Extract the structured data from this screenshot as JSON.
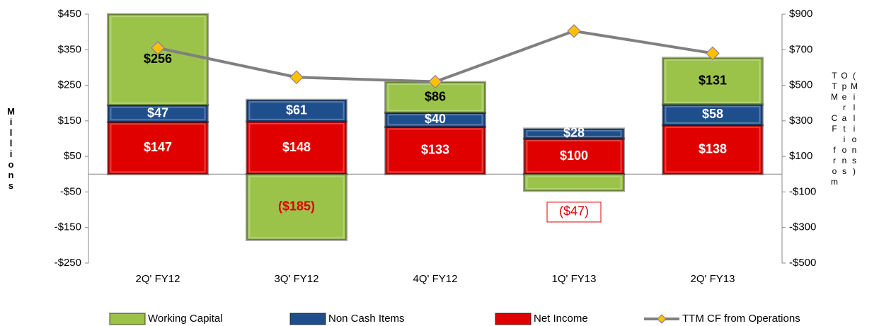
{
  "chart_data": {
    "type": "bar",
    "categories": [
      "2Q' FY12",
      "3Q' FY12",
      "4Q' FY12",
      "1Q' FY13",
      "2Q' FY13"
    ],
    "stacked": true,
    "series": [
      {
        "name": "Net Income",
        "color": "#e00000",
        "values": [
          147,
          148,
          133,
          100,
          138
        ],
        "value_labels": [
          "$147",
          "$148",
          "$133",
          "$100",
          "$138"
        ]
      },
      {
        "name": "Non Cash Items",
        "color": "#1f4e8c",
        "values": [
          47,
          61,
          40,
          28,
          58
        ],
        "value_labels": [
          "$47",
          "$61",
          "$40",
          "$28",
          "$58"
        ]
      },
      {
        "name": "Working Capital",
        "color": "#9bc34a",
        "values": [
          256,
          -185,
          86,
          -47,
          131
        ],
        "value_labels": [
          "$256",
          "($185)",
          "$86",
          "($47)",
          "$131"
        ]
      },
      {
        "name": "TTM CF from Operations",
        "type": "line",
        "axis": "y2",
        "color": "#808080",
        "marker_color": "#ffc000",
        "values": [
          710,
          545,
          520,
          805,
          680
        ]
      }
    ],
    "ylabel": "Millions",
    "y2label": "TTM CF from Operations (Millions)",
    "ylim": [
      -250,
      450
    ],
    "yticks": [
      {
        "value": -250,
        "label": "-$250"
      },
      {
        "value": -150,
        "label": "-$150"
      },
      {
        "value": -50,
        "label": "-$50"
      },
      {
        "value": 50,
        "label": "$50"
      },
      {
        "value": 150,
        "label": "$150"
      },
      {
        "value": 250,
        "label": "$250"
      },
      {
        "value": 350,
        "label": "$350"
      },
      {
        "value": 450,
        "label": "$450"
      }
    ],
    "y2lim": [
      -500,
      900
    ],
    "y2ticks": [
      {
        "value": -500,
        "label": "-$500"
      },
      {
        "value": -300,
        "label": "-$300"
      },
      {
        "value": -100,
        "label": "-$100"
      },
      {
        "value": 100,
        "label": "$100"
      },
      {
        "value": 300,
        "label": "$300"
      },
      {
        "value": 500,
        "label": "$500"
      },
      {
        "value": 700,
        "label": "$700"
      },
      {
        "value": 900,
        "label": "$900"
      }
    ],
    "grid": false,
    "legend": "bottom"
  }
}
